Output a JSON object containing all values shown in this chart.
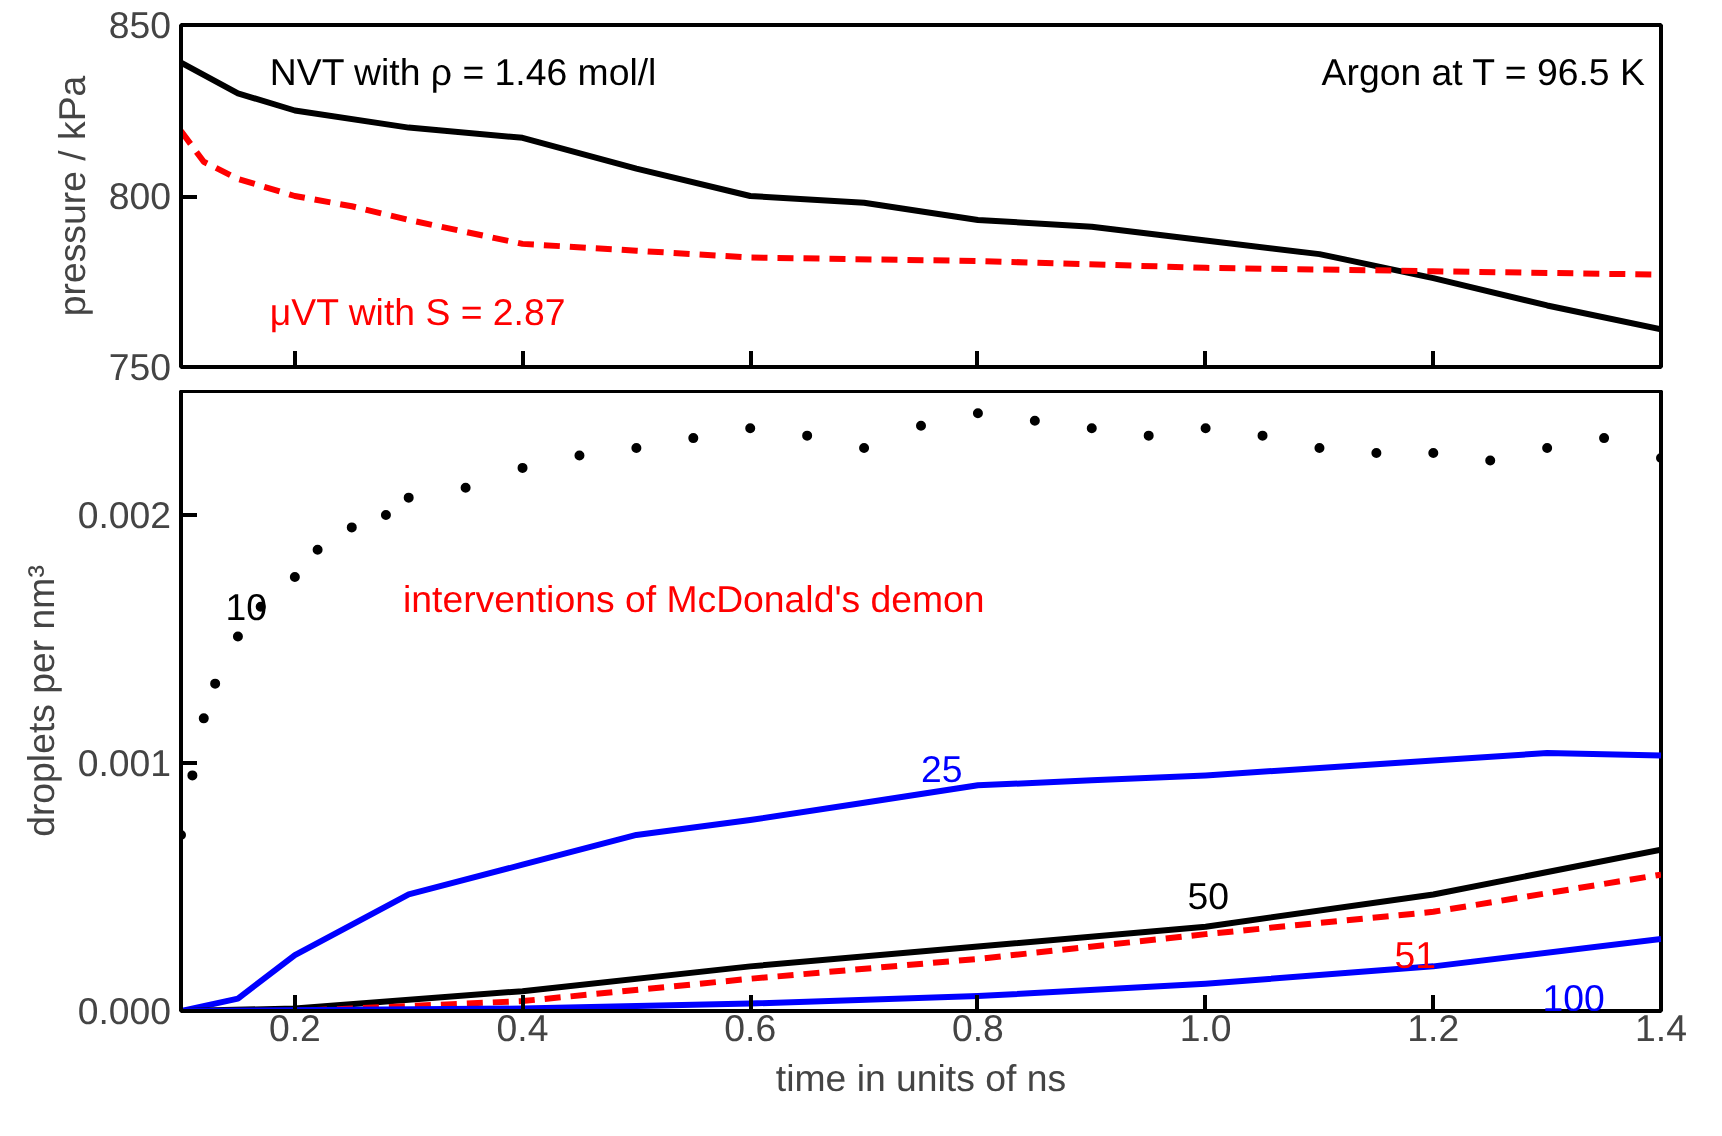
{
  "chart_data": [
    {
      "type": "line",
      "ylabel": "pressure / kPa",
      "xlim": [
        0.1,
        1.4
      ],
      "ylim": [
        750,
        850
      ],
      "xticks": [
        0.2,
        0.4,
        0.6,
        0.8,
        1.0,
        1.2,
        1.4
      ],
      "yticks": [
        750,
        800,
        850
      ],
      "tick_labels": "y",
      "grid": false,
      "legend": false,
      "annotations": [
        "Argon at T = 96.5 K"
      ],
      "series": [
        {
          "name": "NVT with ρ = 1.46 mol/l",
          "color": "#000000",
          "line_style": "solid",
          "x": [
            0.1,
            0.15,
            0.2,
            0.3,
            0.4,
            0.5,
            0.6,
            0.7,
            0.8,
            0.9,
            1.0,
            1.1,
            1.2,
            1.3,
            1.4
          ],
          "values": [
            839,
            830,
            825,
            820,
            817,
            808,
            800,
            798,
            793,
            791,
            787,
            783,
            776,
            768,
            761
          ]
        },
        {
          "name": "μVT with S = 2.87",
          "color": "#ff0000",
          "line_style": "dashed",
          "x": [
            0.1,
            0.12,
            0.15,
            0.2,
            0.25,
            0.3,
            0.4,
            0.5,
            0.6,
            0.8,
            1.0,
            1.2,
            1.4
          ],
          "values": [
            819,
            810,
            805,
            800,
            797,
            793,
            786,
            784,
            782,
            781,
            779,
            778,
            777
          ]
        }
      ]
    },
    {
      "type": "line",
      "xlabel": "time in units of ns",
      "ylabel": "droplets per nm³",
      "xlim": [
        0.1,
        1.4
      ],
      "ylim": [
        0,
        0.0025
      ],
      "xticks": [
        0.2,
        0.4,
        0.6,
        0.8,
        {
          "value": 1.0,
          "label": "1.0"
        },
        1.2,
        1.4
      ],
      "yticks": [
        {
          "value": 0,
          "label": "0.000"
        },
        {
          "value": 0.001,
          "label": "0.001"
        },
        {
          "value": 0.002,
          "label": "0.002"
        }
      ],
      "grid": false,
      "legend": false,
      "annotations": [
        "interventions of McDonald's demon"
      ],
      "series": [
        {
          "name": "10",
          "type": "scatter",
          "marker": "circle",
          "color": "#000000",
          "x": [
            0.1,
            0.11,
            0.12,
            0.13,
            0.15,
            0.17,
            0.2,
            0.22,
            0.25,
            0.28,
            0.3,
            0.35,
            0.4,
            0.45,
            0.5,
            0.55,
            0.6,
            0.65,
            0.7,
            0.75,
            0.8,
            0.85,
            0.9,
            0.95,
            1.0,
            1.05,
            1.1,
            1.15,
            1.2,
            1.25,
            1.3,
            1.35,
            1.4
          ],
          "values": [
            0.00071,
            0.00095,
            0.00118,
            0.00132,
            0.00151,
            0.00163,
            0.00175,
            0.00186,
            0.00195,
            0.002,
            0.00207,
            0.00211,
            0.00219,
            0.00224,
            0.00227,
            0.00231,
            0.00235,
            0.00232,
            0.00227,
            0.00236,
            0.00241,
            0.00238,
            0.00235,
            0.00232,
            0.00235,
            0.00232,
            0.00227,
            0.00225,
            0.00225,
            0.00222,
            0.00227,
            0.00231,
            0.00223
          ]
        },
        {
          "name": "25",
          "color": "#0000ff",
          "line_style": "solid",
          "x": [
            0.1,
            0.15,
            0.2,
            0.3,
            0.4,
            0.5,
            0.6,
            0.7,
            0.8,
            0.9,
            1.0,
            1.1,
            1.2,
            1.3,
            1.4
          ],
          "values": [
            0,
            5e-05,
            0.000225,
            0.00047,
            0.00059,
            0.00071,
            0.00077,
            0.00084,
            0.00091,
            0.00093,
            0.00095,
            0.00098,
            0.00101,
            0.00104,
            0.00103
          ]
        },
        {
          "name": "50",
          "color": "#000000",
          "line_style": "solid",
          "x": [
            0.1,
            0.2,
            0.4,
            0.6,
            0.8,
            1.0,
            1.2,
            1.4
          ],
          "values": [
            0,
            1e-05,
            8e-05,
            0.00018,
            0.00026,
            0.00034,
            0.00047,
            0.00065
          ]
        },
        {
          "name": "51",
          "color": "#ff0000",
          "line_style": "dashed",
          "x": [
            0.1,
            0.2,
            0.4,
            0.6,
            0.8,
            1.0,
            1.2,
            1.4
          ],
          "values": [
            0,
            0,
            4e-05,
            0.00013,
            0.00021,
            0.00031,
            0.0004,
            0.00055
          ]
        },
        {
          "name": "100",
          "color": "#0000ff",
          "line_style": "solid",
          "x": [
            0.1,
            0.4,
            0.6,
            0.8,
            1.0,
            1.2,
            1.4
          ],
          "values": [
            0,
            1e-05,
            3e-05,
            6e-05,
            0.00011,
            0.00018,
            0.00029
          ]
        }
      ]
    }
  ]
}
